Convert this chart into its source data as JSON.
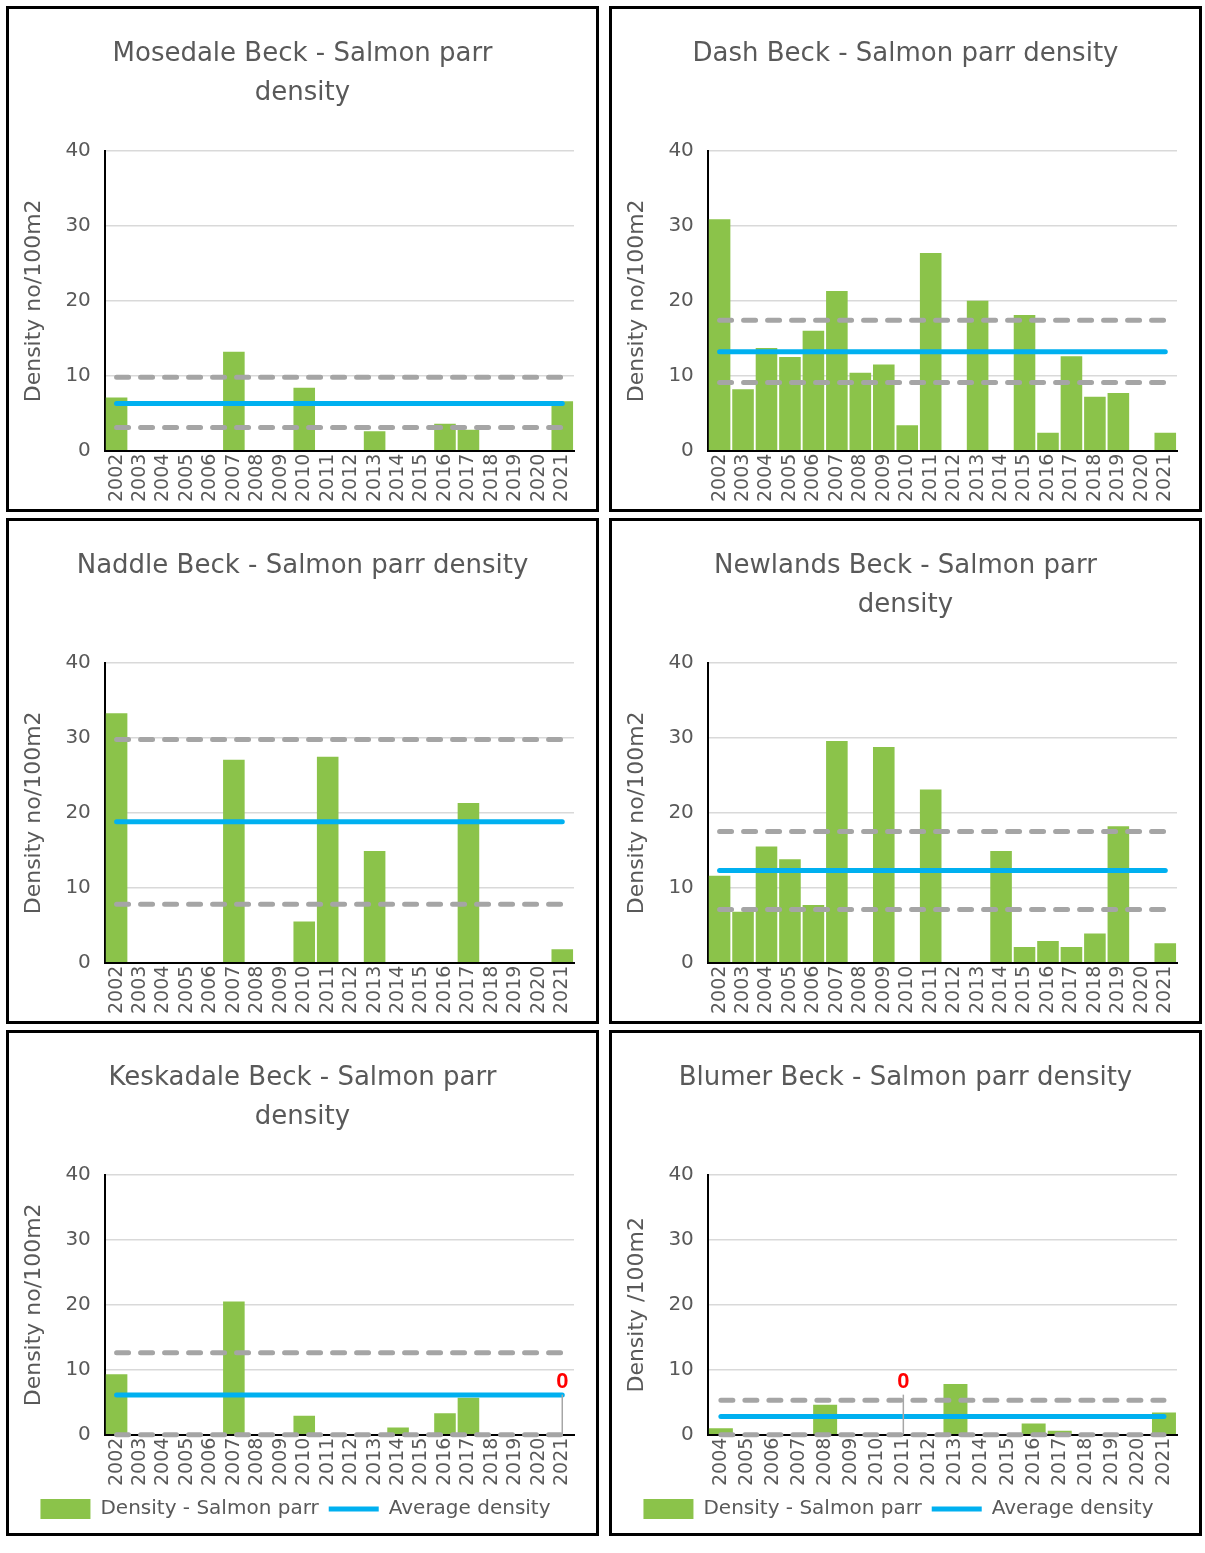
{
  "chart_data": [
    {
      "type": "bar",
      "title": "Mosedale Beck - Salmon parr density",
      "ylabel": "Density no/100m2",
      "categories": [
        "2002",
        "2003",
        "2004",
        "2005",
        "2006",
        "2007",
        "2008",
        "2009",
        "2010",
        "2011",
        "2012",
        "2013",
        "2014",
        "2015",
        "2016",
        "2017",
        "2018",
        "2019",
        "2020",
        "2021"
      ],
      "series": [
        {
          "color": "#8bc34a",
          "values": [
            7.1,
            null,
            null,
            null,
            null,
            13.2,
            null,
            null,
            8.4,
            null,
            null,
            2.6,
            null,
            null,
            3.6,
            2.8,
            null,
            null,
            null,
            6.6
          ]
        },
        {
          "type": "line",
          "color": "#00b0f0",
          "values": [
            6.3,
            6.3,
            6.3,
            6.3,
            6.3,
            6.3,
            6.3,
            6.3,
            6.3,
            6.3,
            6.3,
            6.3,
            6.3,
            6.3,
            6.3,
            6.3,
            6.3,
            6.3,
            6.3,
            6.3
          ]
        }
      ],
      "ref_lines": [
        {
          "axis": "y",
          "value": 9.8,
          "color": "#a5a5a5",
          "line_style": "dashed"
        },
        {
          "axis": "y",
          "value": 3.1,
          "color": "#a5a5a5",
          "line_style": "dashed"
        }
      ],
      "ylim": [
        0,
        40
      ],
      "yticks": [
        0,
        10,
        20,
        30,
        40
      ],
      "grid": "y",
      "legend": false
    },
    {
      "type": "bar",
      "title": "Dash Beck - Salmon parr density",
      "ylabel": "Density no/100m2",
      "categories": [
        "2002",
        "2003",
        "2004",
        "2005",
        "2006",
        "2007",
        "2008",
        "2009",
        "2010",
        "2011",
        "2012",
        "2013",
        "2014",
        "2015",
        "2016",
        "2017",
        "2018",
        "2019",
        "2020",
        "2021"
      ],
      "series": [
        {
          "color": "#8bc34a",
          "values": [
            30.9,
            8.2,
            13.7,
            12.5,
            16.0,
            21.3,
            10.4,
            11.5,
            3.4,
            26.4,
            null,
            20.0,
            null,
            18.1,
            2.4,
            12.6,
            7.2,
            7.7,
            null,
            2.4
          ]
        },
        {
          "type": "line",
          "color": "#00b0f0",
          "values": [
            13.2,
            13.2,
            13.2,
            13.2,
            13.2,
            13.2,
            13.2,
            13.2,
            13.2,
            13.2,
            13.2,
            13.2,
            13.2,
            13.2,
            13.2,
            13.2,
            13.2,
            13.2,
            13.2,
            13.2
          ]
        }
      ],
      "ref_lines": [
        {
          "axis": "y",
          "value": 17.4,
          "color": "#a5a5a5",
          "line_style": "dashed"
        },
        {
          "axis": "y",
          "value": 9.1,
          "color": "#a5a5a5",
          "line_style": "dashed"
        }
      ],
      "ylim": [
        0,
        40
      ],
      "yticks": [
        0,
        10,
        20,
        30,
        40
      ],
      "grid": "y",
      "legend": false
    },
    {
      "type": "bar",
      "title": "Naddle Beck - Salmon parr density",
      "ylabel": "Density no/100m2",
      "categories": [
        "2002",
        "2003",
        "2004",
        "2005",
        "2006",
        "2007",
        "2008",
        "2009",
        "2010",
        "2011",
        "2012",
        "2013",
        "2014",
        "2015",
        "2016",
        "2017",
        "2018",
        "2019",
        "2020",
        "2021"
      ],
      "series": [
        {
          "color": "#8bc34a",
          "values": [
            33.3,
            null,
            null,
            null,
            null,
            27.1,
            null,
            null,
            5.5,
            27.5,
            null,
            14.9,
            null,
            null,
            null,
            21.3,
            null,
            null,
            null,
            1.8
          ]
        },
        {
          "type": "line",
          "color": "#00b0f0",
          "values": [
            18.8,
            18.8,
            18.8,
            18.8,
            18.8,
            18.8,
            18.8,
            18.8,
            18.8,
            18.8,
            18.8,
            18.8,
            18.8,
            18.8,
            18.8,
            18.8,
            18.8,
            18.8,
            18.8,
            18.8
          ]
        }
      ],
      "ref_lines": [
        {
          "axis": "y",
          "value": 29.8,
          "color": "#a5a5a5",
          "line_style": "dashed"
        },
        {
          "axis": "y",
          "value": 7.8,
          "color": "#a5a5a5",
          "line_style": "dashed"
        }
      ],
      "ylim": [
        0,
        40
      ],
      "yticks": [
        0,
        10,
        20,
        30,
        40
      ],
      "grid": "y",
      "legend": false
    },
    {
      "type": "bar",
      "title": "Newlands Beck - Salmon parr density",
      "ylabel": "Density no/100m2",
      "categories": [
        "2002",
        "2003",
        "2004",
        "2005",
        "2006",
        "2007",
        "2008",
        "2009",
        "2010",
        "2011",
        "2012",
        "2013",
        "2014",
        "2015",
        "2016",
        "2017",
        "2018",
        "2019",
        "2020",
        "2021"
      ],
      "series": [
        {
          "color": "#8bc34a",
          "values": [
            11.6,
            6.8,
            15.5,
            13.8,
            7.7,
            29.6,
            null,
            28.8,
            null,
            23.1,
            null,
            null,
            14.9,
            2.1,
            2.9,
            2.1,
            3.9,
            18.2,
            null,
            2.6
          ]
        },
        {
          "type": "line",
          "color": "#00b0f0",
          "values": [
            12.3,
            12.3,
            12.3,
            12.3,
            12.3,
            12.3,
            12.3,
            12.3,
            12.3,
            12.3,
            12.3,
            12.3,
            12.3,
            12.3,
            12.3,
            12.3,
            12.3,
            12.3,
            12.3,
            12.3
          ]
        }
      ],
      "ref_lines": [
        {
          "axis": "y",
          "value": 17.5,
          "color": "#a5a5a5",
          "line_style": "dashed"
        },
        {
          "axis": "y",
          "value": 7.1,
          "color": "#a5a5a5",
          "line_style": "dashed"
        }
      ],
      "ylim": [
        0,
        40
      ],
      "yticks": [
        0,
        10,
        20,
        30,
        40
      ],
      "grid": "y",
      "legend": false
    },
    {
      "type": "bar",
      "title": "Keskadale Beck - Salmon parr density",
      "ylabel": "Density no/100m2",
      "categories": [
        "2002",
        "2003",
        "2004",
        "2005",
        "2006",
        "2007",
        "2008",
        "2009",
        "2010",
        "2011",
        "2012",
        "2013",
        "2014",
        "2015",
        "2016",
        "2017",
        "2018",
        "2019",
        "2020",
        "2021"
      ],
      "series": [
        {
          "name": "Density - Salmon parr",
          "color": "#8bc34a",
          "values": [
            9.3,
            null,
            null,
            null,
            null,
            20.5,
            null,
            null,
            2.9,
            null,
            null,
            null,
            1.1,
            null,
            3.3,
            5.7,
            null,
            null,
            null,
            0
          ]
        },
        {
          "type": "line",
          "name": "Average density",
          "color": "#00b0f0",
          "values": [
            6.1,
            6.1,
            6.1,
            6.1,
            6.1,
            6.1,
            6.1,
            6.1,
            6.1,
            6.1,
            6.1,
            6.1,
            6.1,
            6.1,
            6.1,
            6.1,
            6.1,
            6.1,
            6.1,
            6.1
          ]
        }
      ],
      "ref_lines": [
        {
          "axis": "y",
          "value": 12.6,
          "color": "#a5a5a5",
          "line_style": "dashed"
        },
        {
          "axis": "y",
          "value": 0,
          "color": "#a5a5a5",
          "line_style": "dashed"
        }
      ],
      "annotations": [
        {
          "text": "0",
          "x": "2021",
          "y": 0
        }
      ],
      "ylim": [
        0,
        40
      ],
      "yticks": [
        0,
        10,
        20,
        30,
        40
      ],
      "grid": "y",
      "legend": "bottom"
    },
    {
      "type": "bar",
      "title": "Blumer Beck - Salmon parr density",
      "ylabel": "Density /100m2",
      "categories": [
        "2004",
        "2005",
        "2006",
        "2007",
        "2008",
        "2009",
        "2010",
        "2011",
        "2012",
        "2013",
        "2014",
        "2015",
        "2016",
        "2017",
        "2018",
        "2019",
        "2020",
        "2021"
      ],
      "series": [
        {
          "name": "Density - Salmon parr",
          "color": "#8bc34a",
          "values": [
            1.0,
            null,
            null,
            null,
            4.6,
            null,
            null,
            0,
            null,
            7.8,
            null,
            null,
            1.7,
            0.6,
            null,
            null,
            null,
            3.4
          ]
        },
        {
          "type": "line",
          "name": "Average density",
          "color": "#00b0f0",
          "values": [
            2.8,
            2.8,
            2.8,
            2.8,
            2.8,
            2.8,
            2.8,
            2.8,
            2.8,
            2.8,
            2.8,
            2.8,
            2.8,
            2.8,
            2.8,
            2.8,
            2.8,
            2.8
          ]
        }
      ],
      "ref_lines": [
        {
          "axis": "y",
          "value": 5.3,
          "color": "#a5a5a5",
          "line_style": "dashed"
        },
        {
          "axis": "y",
          "value": 0,
          "color": "#a5a5a5",
          "line_style": "dashed"
        }
      ],
      "annotations": [
        {
          "text": "0",
          "x": "2011",
          "y": 0
        }
      ],
      "ylim": [
        0,
        40
      ],
      "yticks": [
        0,
        10,
        20,
        30,
        40
      ],
      "grid": "y",
      "legend": "bottom"
    }
  ]
}
